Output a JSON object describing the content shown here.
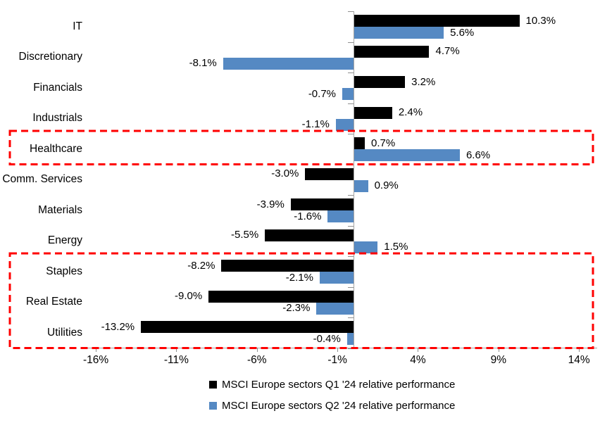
{
  "chart_data": {
    "type": "bar",
    "orientation": "horizontal",
    "title": "",
    "categories": [
      "IT",
      "Discretionary",
      "Financials",
      "Industrials",
      "Healthcare",
      "Comm. Services",
      "Materials",
      "Energy",
      "Staples",
      "Real Estate",
      "Utilities"
    ],
    "series": [
      {
        "name": "MSCI Europe sectors Q1 '24 relative performance",
        "color": "#000000",
        "values": [
          10.3,
          4.7,
          3.2,
          2.4,
          0.7,
          -3.0,
          -3.9,
          -5.5,
          -8.2,
          -9.0,
          -13.2
        ]
      },
      {
        "name": "MSCI Europe sectors Q2 '24 relative performance",
        "color": "#5589c3",
        "values": [
          5.6,
          -8.1,
          -0.7,
          -1.1,
          6.6,
          0.9,
          -1.6,
          1.5,
          -2.1,
          -2.3,
          -0.4
        ]
      }
    ],
    "x_axis": {
      "tick_labels": [
        "-16%",
        "-11%",
        "-6%",
        "-1%",
        "4%",
        "9%",
        "14%"
      ],
      "tick_values": [
        -16,
        -11,
        -6,
        -1,
        4,
        9,
        14
      ],
      "range": [
        -16.6,
        15.1
      ]
    },
    "value_label_suffix": "%",
    "value_label_decimals": 1,
    "grid": false,
    "legend_position": "bottom",
    "highlights": [
      {
        "name": "healthcare-highlight",
        "rows": [
          4,
          4
        ],
        "color": "#ff0000"
      },
      {
        "name": "defensive-sectors-highlight",
        "rows": [
          8,
          10
        ],
        "color": "#ff0000"
      }
    ]
  },
  "colors": {
    "q1_bar": "#000000",
    "q2_bar": "#5589c3",
    "highlight_red": "#ff0000",
    "axis_gray": "#a3a3a3",
    "text": "#000000",
    "background": "#ffffff"
  }
}
